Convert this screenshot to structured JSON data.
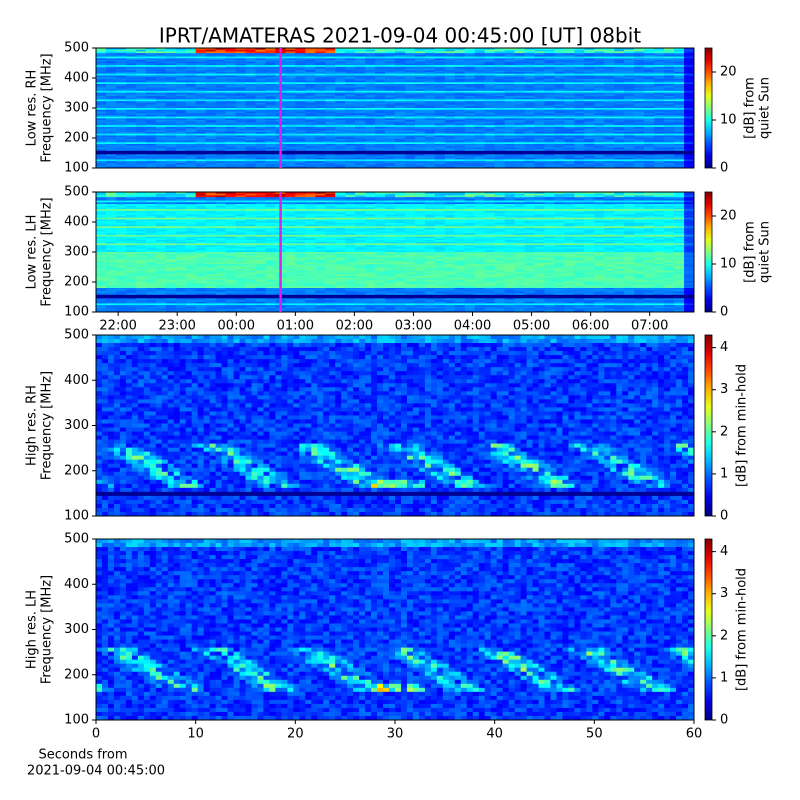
{
  "title": "IPRT/AMATERAS 2021-09-04 00:45:00 [UT]   08bit",
  "chart_data": [
    {
      "type": "spectrogram",
      "ylabel": [
        "Low res. RH",
        "Frequency [MHz]"
      ],
      "ylim": [
        100,
        500
      ],
      "yticks": [
        100,
        200,
        300,
        400,
        500
      ],
      "xlim": [
        -2.375,
        7.75
      ],
      "marker_x": 0.75,
      "marker_color": "#e020e0",
      "colorbar": {
        "label": [
          "[dB] from",
          "quiet Sun"
        ],
        "lim": [
          0,
          25
        ],
        "ticks": [
          0,
          10,
          20
        ]
      }
    },
    {
      "type": "spectrogram",
      "ylabel": [
        "Low res. LH",
        "Frequency [MHz]"
      ],
      "ylim": [
        100,
        500
      ],
      "yticks": [
        100,
        200,
        300,
        400,
        500
      ],
      "xlim": [
        -2.375,
        7.75
      ],
      "marker_x": 0.75,
      "marker_color": "#e020e0",
      "xticks": [
        {
          "value": -2,
          "label": "22:00"
        },
        {
          "value": -1,
          "label": "23:00"
        },
        {
          "value": 0,
          "label": "00:00"
        },
        {
          "value": 1,
          "label": "01:00"
        },
        {
          "value": 2,
          "label": "02:00"
        },
        {
          "value": 3,
          "label": "03:00"
        },
        {
          "value": 4,
          "label": "04:00"
        },
        {
          "value": 5,
          "label": "05:00"
        },
        {
          "value": 6,
          "label": "06:00"
        },
        {
          "value": 7,
          "label": "07:00"
        }
      ],
      "colorbar": {
        "label": [
          "[dB] from",
          "quiet Sun"
        ],
        "lim": [
          0,
          25
        ],
        "ticks": [
          0,
          10,
          20
        ]
      }
    },
    {
      "type": "spectrogram",
      "ylabel": [
        "High res. RH",
        "Frequency [MHz]"
      ],
      "ylim": [
        100,
        500
      ],
      "yticks": [
        100,
        200,
        300,
        400,
        500
      ],
      "xlim": [
        0,
        60
      ],
      "colorbar": {
        "label": [
          "[dB] from min-hold"
        ],
        "lim": [
          0,
          4.3
        ],
        "ticks": [
          0,
          1,
          2,
          3,
          4
        ]
      }
    },
    {
      "type": "spectrogram",
      "ylabel": [
        "High res. LH",
        "Frequency [MHz]"
      ],
      "ylim": [
        100,
        500
      ],
      "yticks": [
        100,
        200,
        300,
        400,
        500
      ],
      "xlim": [
        0,
        60
      ],
      "xticks": [
        0,
        10,
        20,
        30,
        40,
        50,
        60
      ],
      "xlabel": [
        "Seconds from",
        "2021-09-04 00:45:00"
      ],
      "colorbar": {
        "label": [
          "[dB] from min-hold"
        ],
        "lim": [
          0,
          4.3
        ],
        "ticks": [
          0,
          1,
          2,
          3,
          4
        ]
      }
    }
  ]
}
